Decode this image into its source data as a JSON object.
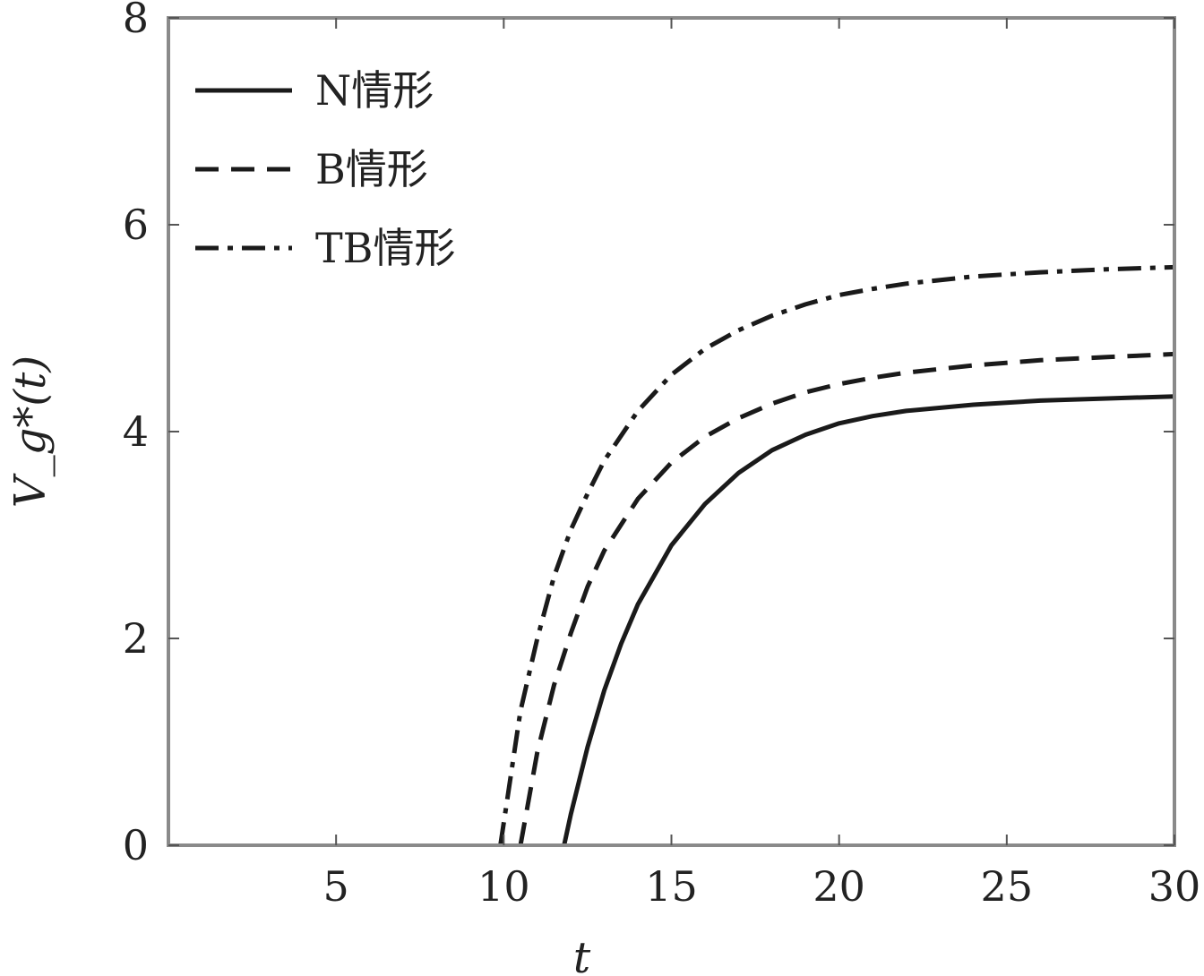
{
  "chart_data": {
    "type": "line",
    "xlabel": "t",
    "ylabel": "V_g*(t)",
    "xlim": [
      0,
      30
    ],
    "ylim": [
      0,
      8
    ],
    "xticks": [
      5,
      10,
      15,
      20,
      25,
      30
    ],
    "yticks": [
      0,
      2,
      4,
      6,
      8
    ],
    "grid": false,
    "legend_position": "top-left",
    "series": [
      {
        "name": "N情形",
        "style": "solid",
        "color": "#1a1a1a",
        "x": [
          11.8,
          12.0,
          12.5,
          13.0,
          13.5,
          14.0,
          15.0,
          16.0,
          17.0,
          18.0,
          19.0,
          20.0,
          21.0,
          22.0,
          24.0,
          26.0,
          28.0,
          30.0
        ],
        "y": [
          0.0,
          0.3,
          0.95,
          1.5,
          1.95,
          2.33,
          2.9,
          3.3,
          3.6,
          3.82,
          3.97,
          4.08,
          4.15,
          4.2,
          4.26,
          4.3,
          4.32,
          4.34
        ]
      },
      {
        "name": "B情形",
        "style": "dashed",
        "color": "#1a1a1a",
        "x": [
          10.5,
          11.0,
          11.5,
          12.0,
          12.5,
          13.0,
          14.0,
          15.0,
          16.0,
          17.0,
          18.0,
          19.0,
          20.0,
          21.0,
          22.0,
          24.0,
          26.0,
          28.0,
          30.0
        ],
        "y": [
          0.0,
          0.9,
          1.55,
          2.05,
          2.5,
          2.85,
          3.35,
          3.7,
          3.95,
          4.13,
          4.27,
          4.38,
          4.46,
          4.52,
          4.57,
          4.64,
          4.69,
          4.72,
          4.75
        ]
      },
      {
        "name": "TB情形",
        "style": "dashdot",
        "color": "#1a1a1a",
        "x": [
          9.9,
          10.5,
          11.0,
          11.5,
          12.0,
          12.5,
          13.0,
          14.0,
          15.0,
          16.0,
          17.0,
          18.0,
          19.0,
          20.0,
          21.0,
          22.0,
          24.0,
          26.0,
          28.0,
          30.0
        ],
        "y": [
          0.0,
          1.3,
          2.0,
          2.6,
          3.05,
          3.4,
          3.72,
          4.2,
          4.55,
          4.8,
          4.98,
          5.12,
          5.23,
          5.32,
          5.38,
          5.43,
          5.5,
          5.54,
          5.57,
          5.59
        ]
      }
    ]
  }
}
